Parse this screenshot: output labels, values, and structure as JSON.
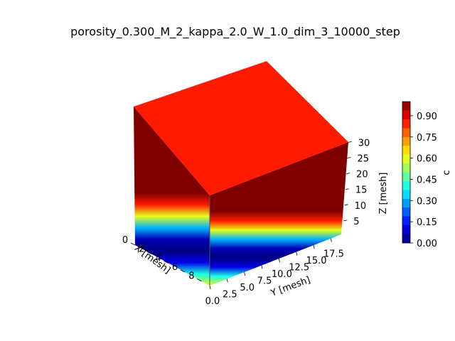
{
  "chart_data": {
    "type": "3d-surface",
    "title": "porosity_0.300_M_2_kappa_2.0_W_1.0_dim_3_10000_step",
    "x_axis": {
      "label": "X [mesh]",
      "range": [
        0,
        9
      ],
      "ticks": [
        "0",
        "2",
        "4",
        "6",
        "8"
      ]
    },
    "y_axis": {
      "label": "Y [mesh]",
      "range": [
        0,
        19
      ],
      "ticks": [
        "0.0",
        "2.5",
        "5.0",
        "7.5",
        "10.0",
        "12.5",
        "15.0",
        "17.5"
      ]
    },
    "z_axis": {
      "label": "Z [mesh]",
      "range": [
        0,
        31
      ],
      "ticks": [
        "5",
        "10",
        "15",
        "20",
        "25",
        "30"
      ]
    },
    "colorbar": {
      "label": "c",
      "range": [
        0,
        1
      ],
      "ticks": [
        "0.00",
        "0.15",
        "0.30",
        "0.45",
        "0.60",
        "0.75",
        "0.90"
      ],
      "colormap": "jet"
    },
    "profile": [
      {
        "z": 0,
        "c": 0.6
      },
      {
        "z": 2,
        "c": 0.4
      },
      {
        "z": 4,
        "c": 0.1
      },
      {
        "z": 6,
        "c": 0.0
      },
      {
        "z": 8,
        "c": 0.05
      },
      {
        "z": 10,
        "c": 0.3
      },
      {
        "z": 12,
        "c": 0.6
      },
      {
        "z": 14,
        "c": 0.85
      },
      {
        "z": 16,
        "c": 1.0
      },
      {
        "z": 31,
        "c": 1.0
      }
    ],
    "top_face_c": 0.85
  }
}
